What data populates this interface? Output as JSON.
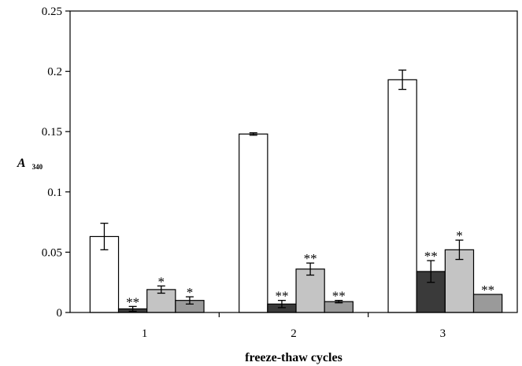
{
  "chart_data": {
    "type": "bar",
    "xlabel": "freeze-thaw cycles",
    "ylabel": "A",
    "ylabel_sub": "340",
    "ylim": [
      0,
      0.25
    ],
    "yticks": [
      "0",
      "0.05",
      "0.1",
      "0.15",
      "0.2",
      "0.25"
    ],
    "ytick_values": [
      0,
      0.05,
      0.1,
      0.15,
      0.2,
      0.25
    ],
    "categories": [
      "1",
      "2",
      "3"
    ],
    "grid": false,
    "legend": "none",
    "series": [
      {
        "color": "#ffffff",
        "values": [
          0.063,
          0.148,
          0.193
        ],
        "errors": [
          0.011,
          0.001,
          0.008
        ],
        "annotations": [
          "",
          "",
          ""
        ]
      },
      {
        "color": "#3a3a3a",
        "values": [
          0.003,
          0.007,
          0.034
        ],
        "errors": [
          0.002,
          0.003,
          0.009
        ],
        "annotations": [
          "**",
          "**",
          "**"
        ]
      },
      {
        "color": "#c4c4c4",
        "values": [
          0.019,
          0.036,
          0.052
        ],
        "errors": [
          0.003,
          0.005,
          0.008
        ],
        "annotations": [
          "*",
          "**",
          "*"
        ]
      },
      {
        "color": "#9a9a9a",
        "values": [
          0.01,
          0.009,
          0.015
        ],
        "errors": [
          0.003,
          0.001,
          0.0
        ],
        "annotations": [
          "*",
          "**",
          "**"
        ]
      }
    ]
  }
}
